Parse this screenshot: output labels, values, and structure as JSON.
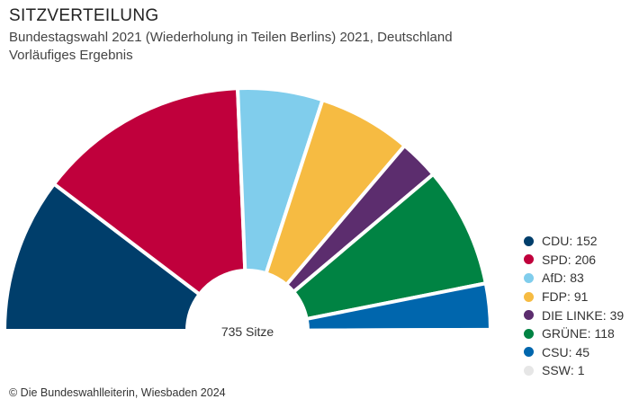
{
  "chart_data": {
    "type": "pie",
    "variant": "semicircle parliament chart",
    "title": "SITZVERTEILUNG",
    "subtitle": "Bundestagswahl 2021 (Wiederholung in Teilen Berlins) 2021, Deutschland",
    "subtitle2": "Vorläufiges Ergebnis",
    "center_label": "735 Sitze",
    "total": 735,
    "slices": [
      {
        "label": "CDU",
        "value": 152,
        "color": "#003e6b"
      },
      {
        "label": "SPD",
        "value": 206,
        "color": "#c0003c"
      },
      {
        "label": "AfD",
        "value": 83,
        "color": "#80cdec"
      },
      {
        "label": "FDP",
        "value": 91,
        "color": "#f6bb42"
      },
      {
        "label": "DIE LINKE",
        "value": 39,
        "color": "#5c2d6e"
      },
      {
        "label": "GRÜNE",
        "value": 118,
        "color": "#008343"
      },
      {
        "label": "CSU",
        "value": 45,
        "color": "#0066ad"
      },
      {
        "label": "SSW",
        "value": 1,
        "color": "#e6e6e6"
      }
    ],
    "legend_position": "right"
  },
  "footer": "© Die Bundeswahlleiterin, Wiesbaden 2024"
}
